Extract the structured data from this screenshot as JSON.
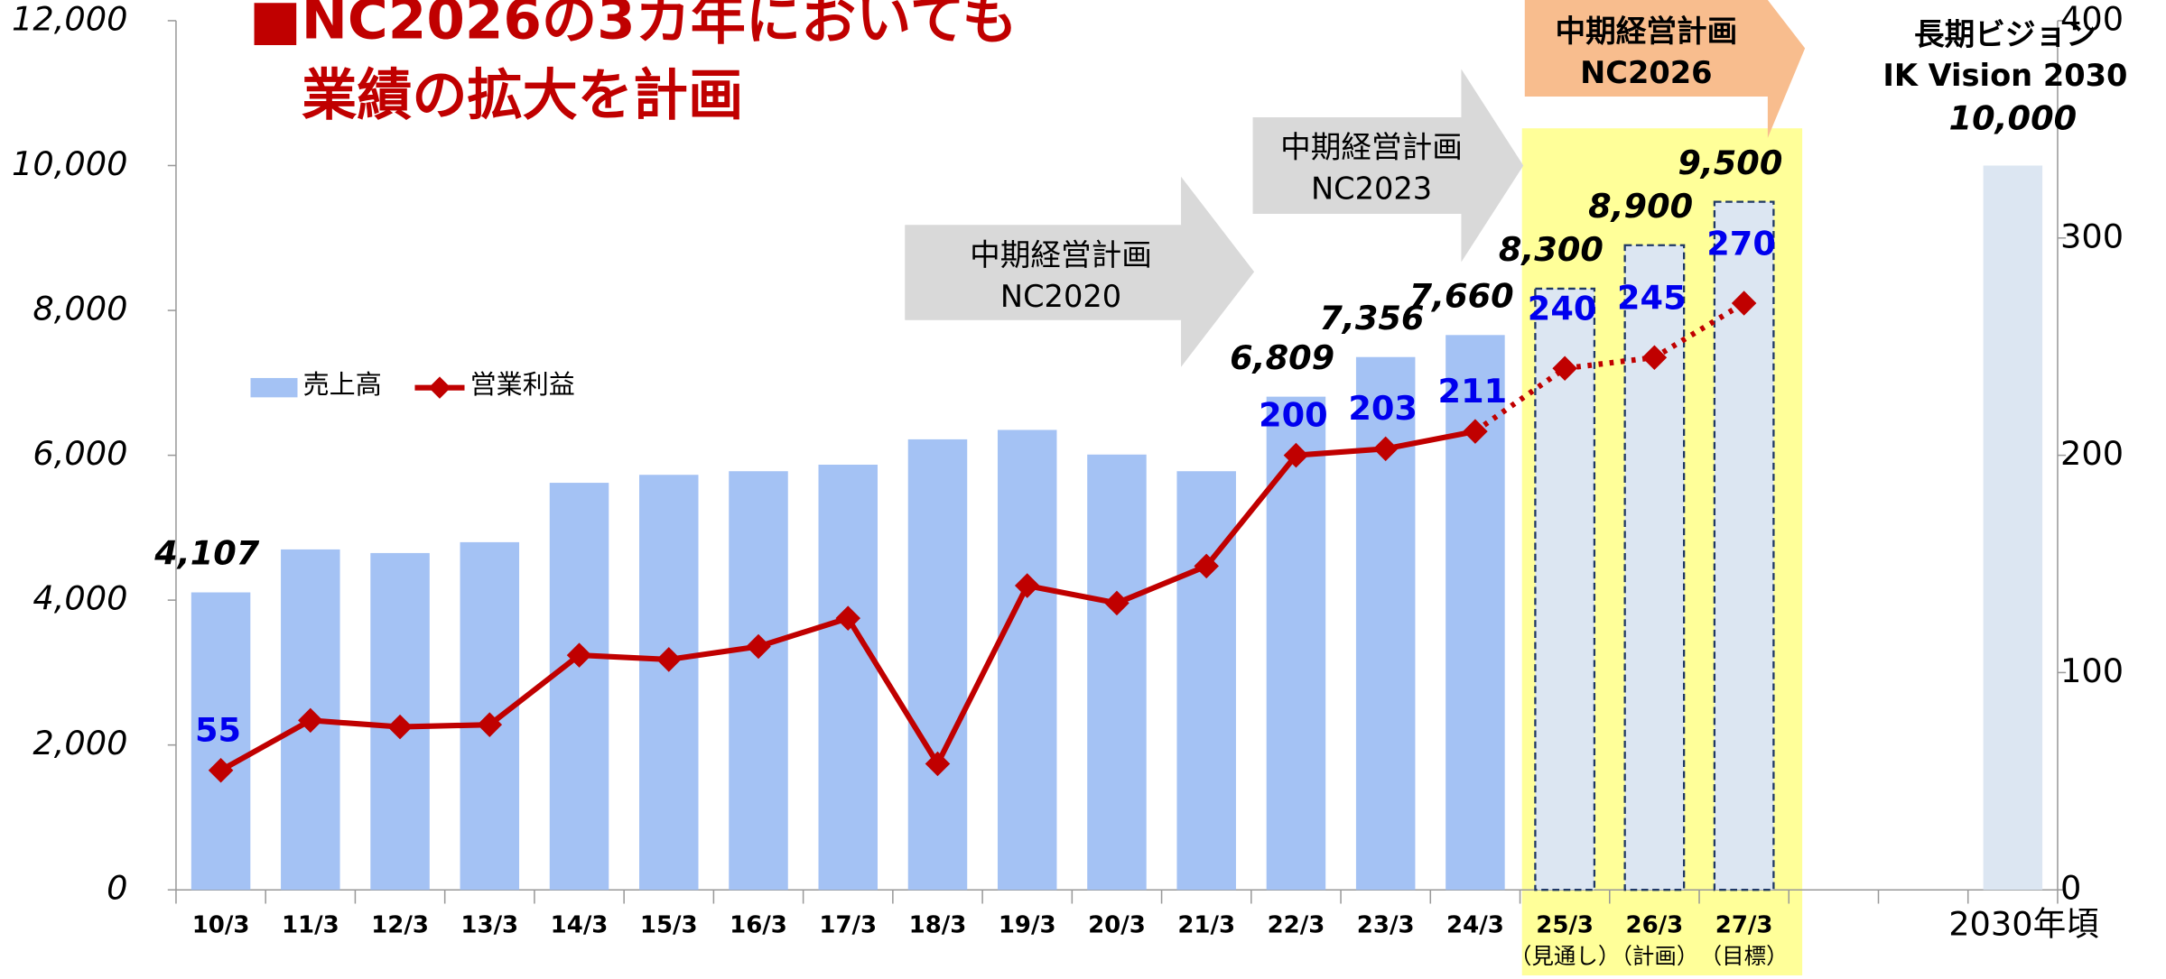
{
  "chart_data": {
    "type": "bar_line",
    "title_lines": [
      "■NC2026の3カ年においても",
      "業績の拡大を計画"
    ],
    "categories": [
      "10/3",
      "11/3",
      "12/3",
      "13/3",
      "14/3",
      "15/3",
      "16/3",
      "17/3",
      "18/3",
      "19/3",
      "20/3",
      "21/3",
      "22/3",
      "23/3",
      "24/3",
      "25/3",
      "26/3",
      "27/3",
      null,
      null,
      "2030年頃"
    ],
    "sublabels": [
      null,
      null,
      null,
      null,
      null,
      null,
      null,
      null,
      null,
      null,
      null,
      null,
      null,
      null,
      null,
      "（見通し）",
      "（計画）",
      "（目標）",
      null,
      null,
      null
    ],
    "series": [
      {
        "name": "売上高",
        "color": "#a4c2f4",
        "forecast_color": "#dce6f2",
        "values": [
          4107,
          4700,
          4650,
          4800,
          5620,
          5730,
          5780,
          5870,
          6220,
          6350,
          6010,
          5780,
          6809,
          7356,
          7660,
          8300,
          8900,
          9500,
          null,
          null,
          10000
        ],
        "value_labels": [
          "4,107",
          null,
          null,
          null,
          null,
          null,
          null,
          null,
          null,
          null,
          null,
          null,
          "6,809",
          "7,356",
          "7,660",
          "8,300",
          "8,900",
          "9,500",
          null,
          null,
          "10,000"
        ]
      },
      {
        "name": "営業利益",
        "color": "#c00000",
        "axis": "y2",
        "values": [
          55,
          78,
          75,
          76,
          108,
          106,
          112,
          125,
          58,
          140,
          132,
          149,
          200,
          203,
          211,
          240,
          245,
          270,
          null,
          null,
          null
        ],
        "value_labels": [
          "55",
          null,
          null,
          null,
          null,
          null,
          null,
          null,
          null,
          null,
          null,
          null,
          "200",
          "203",
          "211",
          "240",
          "245",
          "270",
          null,
          null,
          null
        ]
      }
    ],
    "ylim": [
      0,
      12000
    ],
    "yticks": [
      0,
      {
        "value": 2000,
        "label": "2,000"
      },
      {
        "value": 4000,
        "label": "4,000"
      },
      {
        "value": 6000,
        "label": "6,000"
      },
      {
        "value": 8000,
        "label": "8,000"
      },
      {
        "value": 10000,
        "label": "10,000"
      },
      {
        "value": 12000,
        "label": "12,000"
      }
    ],
    "y2lim": [
      0,
      400
    ],
    "y2ticks": [
      0,
      100,
      200,
      300,
      400
    ],
    "annotations": [
      {
        "lines": [
          "中期経営計画",
          "NC2020"
        ]
      },
      {
        "lines": [
          "中期経営計画",
          "NC2023"
        ]
      },
      {
        "lines": [
          "中期経営計画",
          "NC2026"
        ]
      },
      {
        "lines": [
          "長期ビジョン",
          "IK Vision 2030"
        ]
      }
    ]
  }
}
